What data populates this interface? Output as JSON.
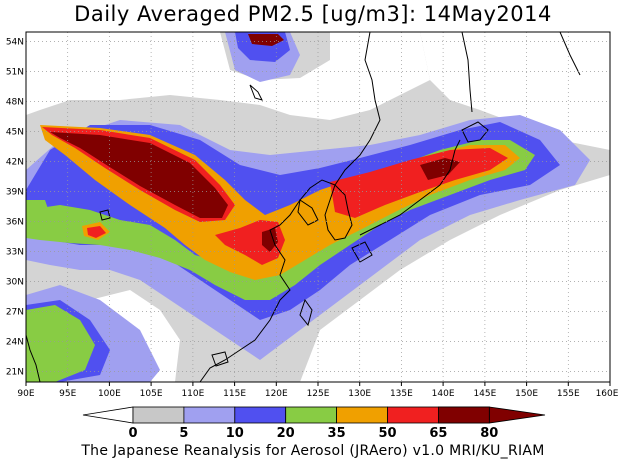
{
  "title": "Daily Averaged PM2.5 [ug/m3]: 14May2014",
  "footer": "The Japanese Reanalysis for Aerosol (JRAero) v1.0 MRI/KU_RIAM",
  "lon_ticks": [
    "90E",
    "95E",
    "100E",
    "105E",
    "110E",
    "115E",
    "120E",
    "125E",
    "130E",
    "135E",
    "140E",
    "145E",
    "150E",
    "155E",
    "160E"
  ],
  "lat_ticks": [
    "54N",
    "51N",
    "48N",
    "45N",
    "42N",
    "39N",
    "36N",
    "33N",
    "30N",
    "27N",
    "24N",
    "21N"
  ],
  "colorbar": {
    "levels": [
      "0",
      "5",
      "10",
      "20",
      "35",
      "50",
      "65",
      "80"
    ],
    "colors": [
      "#ffffff",
      "#c8c8c8",
      "#a0a0f0",
      "#5050f0",
      "#88cc44",
      "#f0a000",
      "#f02020",
      "#800000"
    ]
  },
  "colors": {
    "land_outline": "#000000",
    "grid": "#999999"
  }
}
